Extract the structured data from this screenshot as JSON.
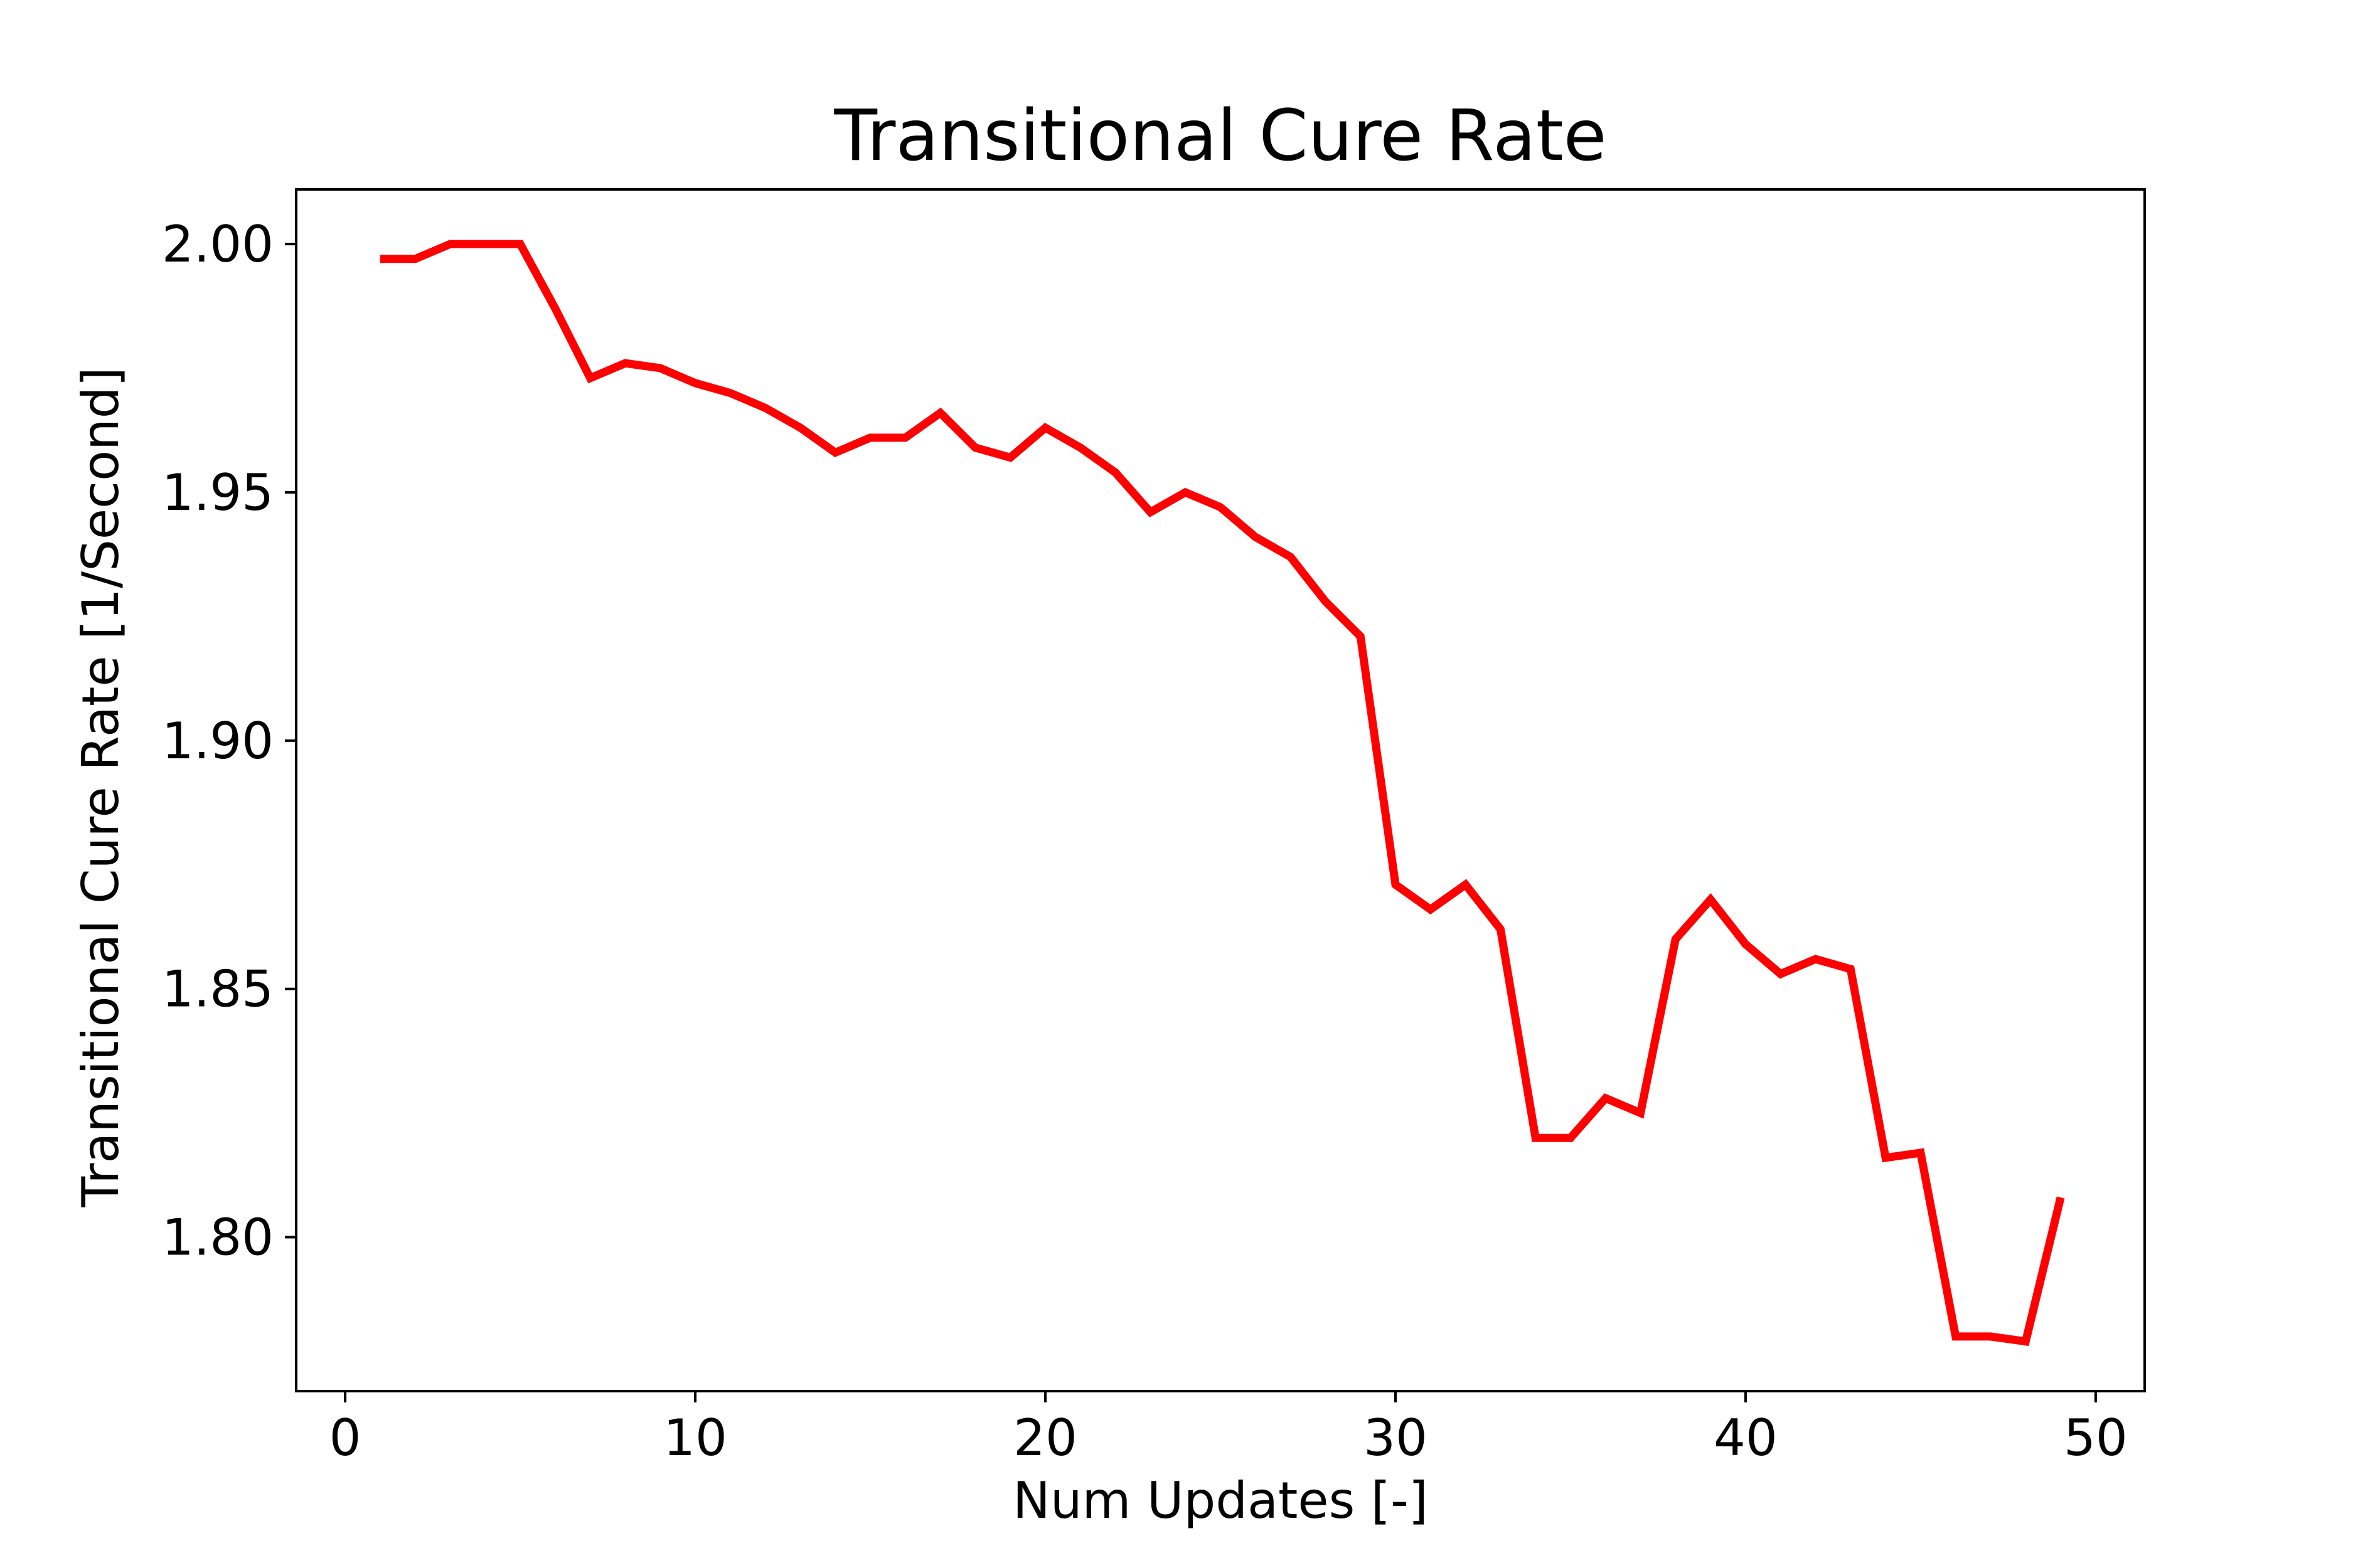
{
  "chart_data": {
    "type": "line",
    "title": "Transitional Cure Rate",
    "xlabel": "Num Updates [-]",
    "ylabel": "Transitional Cure Rate [1/Second]",
    "xlim": [
      -1.4,
      51.4
    ],
    "ylim": [
      1.769,
      2.011
    ],
    "xticks": [
      0,
      10,
      20,
      30,
      40,
      50
    ],
    "xtick_labels": [
      "0",
      "10",
      "20",
      "30",
      "40",
      "50"
    ],
    "yticks": [
      1.8,
      1.85,
      1.9,
      1.95,
      2.0
    ],
    "ytick_labels": [
      "1.80",
      "1.85",
      "1.90",
      "1.95",
      "2.00"
    ],
    "grid": false,
    "series": [
      {
        "color": "#ff0000",
        "x": [
          1,
          2,
          3,
          4,
          5,
          6,
          7,
          8,
          9,
          10,
          11,
          12,
          13,
          14,
          15,
          16,
          17,
          18,
          19,
          20,
          21,
          22,
          23,
          24,
          25,
          26,
          27,
          28,
          29,
          30,
          31,
          32,
          33,
          34,
          35,
          36,
          37,
          38,
          39,
          40,
          41,
          42,
          43,
          44,
          45,
          46,
          47,
          48,
          49
        ],
        "y": [
          1.997,
          1.997,
          2.0,
          2.0,
          2.0,
          1.987,
          1.973,
          1.976,
          1.975,
          1.972,
          1.97,
          1.967,
          1.963,
          1.958,
          1.961,
          1.961,
          1.966,
          1.959,
          1.957,
          1.963,
          1.959,
          1.954,
          1.946,
          1.95,
          1.947,
          1.941,
          1.937,
          1.928,
          1.921,
          1.871,
          1.866,
          1.871,
          1.862,
          1.82,
          1.82,
          1.828,
          1.825,
          1.86,
          1.868,
          1.859,
          1.853,
          1.856,
          1.854,
          1.816,
          1.817,
          1.78,
          1.78,
          1.779,
          1.808
        ]
      }
    ]
  }
}
